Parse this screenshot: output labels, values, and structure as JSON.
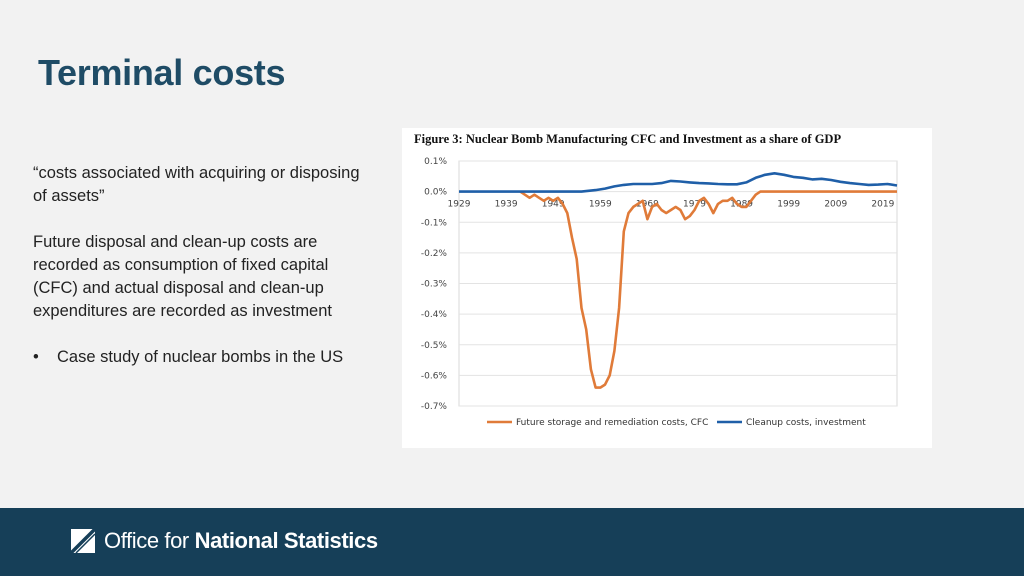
{
  "slide": {
    "title": "Terminal costs",
    "quote": "“costs associated with acquiring or disposing of assets”",
    "paragraph": "Future disposal and clean-up costs are recorded as consumption of fixed capital (CFC) and actual disposal and clean-up expenditures are recorded as investment",
    "bullet_symbol": "•",
    "bullet": "Case study of nuclear bombs in the US"
  },
  "footer": {
    "logo_light": "Office for",
    "logo_bold": "National Statistics"
  },
  "chart_data": {
    "type": "line",
    "title": "Figure 3: Nuclear Bomb Manufacturing CFC and Investment as a share of GDP",
    "ylim": [
      -0.007,
      0.001
    ],
    "y_ticks": [
      0.001,
      0,
      -0.001,
      -0.002,
      -0.003,
      -0.004,
      -0.005,
      -0.006,
      -0.007
    ],
    "y_tick_labels": [
      "0.1%",
      "0.0%",
      "-0.1%",
      "-0.2%",
      "-0.3%",
      "-0.4%",
      "-0.5%",
      "-0.6%",
      "-0.7%"
    ],
    "xlim": [
      1929,
      2022
    ],
    "x_ticks": [
      1929,
      1939,
      1949,
      1959,
      1969,
      1979,
      1989,
      1999,
      2009,
      2019
    ],
    "x_tick_labels": [
      "1929",
      "1939",
      "1949",
      "1959",
      "1969",
      "1979",
      "1989",
      "1999",
      "2009",
      "2019"
    ],
    "grid": true,
    "legend_position": "bottom",
    "series": [
      {
        "name": "Future storage and remediation costs, CFC",
        "color": "#e07b39",
        "x": [
          1942,
          1943,
          1944,
          1945,
          1946,
          1947,
          1948,
          1949,
          1950,
          1951,
          1952,
          1953,
          1954,
          1955,
          1956,
          1957,
          1958,
          1959,
          1960,
          1961,
          1962,
          1963,
          1964,
          1965,
          1966,
          1967,
          1968,
          1969,
          1970,
          1971,
          1972,
          1973,
          1974,
          1975,
          1976,
          1977,
          1978,
          1979,
          1980,
          1981,
          1982,
          1983,
          1984,
          1985,
          1986,
          1987,
          1988,
          1989,
          1990,
          1991,
          1992,
          1993,
          1994,
          1995,
          2000,
          2010,
          2022
        ],
        "y": [
          0,
          -0.0001,
          -0.0002,
          -0.0001,
          -0.0002,
          -0.0003,
          -0.0002,
          -0.0003,
          -0.0002,
          -0.0004,
          -0.0007,
          -0.0015,
          -0.0022,
          -0.0038,
          -0.0045,
          -0.0058,
          -0.0064,
          -0.0064,
          -0.0063,
          -0.006,
          -0.0052,
          -0.0038,
          -0.0013,
          -0.0007,
          -0.0005,
          -0.0004,
          -0.0003,
          -0.0009,
          -0.0005,
          -0.0004,
          -0.0006,
          -0.0007,
          -0.0006,
          -0.0005,
          -0.0006,
          -0.0009,
          -0.0008,
          -0.0006,
          -0.0003,
          -0.0002,
          -0.0004,
          -0.0007,
          -0.0004,
          -0.0003,
          -0.0003,
          -0.0002,
          -0.0004,
          -0.0005,
          -0.0005,
          -0.0003,
          -0.0001,
          0,
          0,
          0,
          0,
          0,
          0
        ]
      },
      {
        "name": "Cleanup costs, investment",
        "color": "#1f5fa8",
        "x": [
          1929,
          1940,
          1950,
          1955,
          1958,
          1960,
          1962,
          1964,
          1966,
          1968,
          1970,
          1972,
          1974,
          1976,
          1978,
          1980,
          1982,
          1984,
          1986,
          1988,
          1990,
          1992,
          1994,
          1996,
          1998,
          2000,
          2002,
          2004,
          2006,
          2008,
          2010,
          2012,
          2014,
          2016,
          2018,
          2020,
          2022
        ],
        "y": [
          0,
          0,
          0,
          0,
          5e-05,
          0.0001,
          0.00017,
          0.00022,
          0.00025,
          0.00025,
          0.00025,
          0.00028,
          0.00035,
          0.00033,
          0.0003,
          0.00028,
          0.00027,
          0.00025,
          0.00024,
          0.00024,
          0.0003,
          0.00045,
          0.00055,
          0.0006,
          0.00055,
          0.00048,
          0.00045,
          0.0004,
          0.00042,
          0.00038,
          0.00032,
          0.00028,
          0.00025,
          0.00022,
          0.00023,
          0.00025,
          0.0002
        ]
      }
    ]
  }
}
